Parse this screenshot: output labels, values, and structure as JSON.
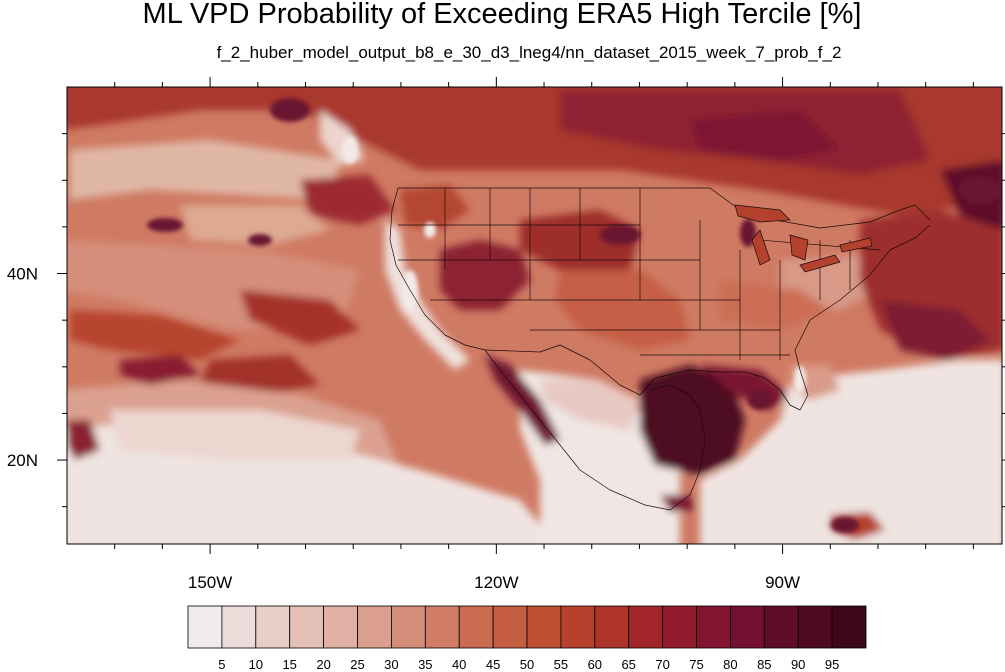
{
  "title": "ML VPD Probability of Exceeding ERA5 High Tercile [%]",
  "subtitle": "f_2_huber_model_output_b8_e_30_d3_lneg4/nn_dataset_2015_week_7_prob_f_2",
  "map": {
    "projection": "cylindrical equidistant",
    "lon_range": [
      -165,
      -67
    ],
    "lat_range": [
      11,
      60
    ],
    "x_ticks": [
      {
        "lon": -150,
        "label": "150W"
      },
      {
        "lon": -120,
        "label": "120W"
      },
      {
        "lon": -90,
        "label": "90W"
      }
    ],
    "y_ticks": [
      {
        "lat": 40,
        "label": "40N"
      },
      {
        "lat": 20,
        "label": "20N"
      }
    ],
    "boundaries": "coastlines, US states, Canada/Mexico borders"
  },
  "colorbar": {
    "labels": [
      "5",
      "10",
      "15",
      "20",
      "25",
      "30",
      "35",
      "40",
      "45",
      "50",
      "55",
      "60",
      "65",
      "70",
      "75",
      "80",
      "85",
      "90",
      "95"
    ],
    "colors": [
      "#f1ebeb",
      "#ecdcda",
      "#e8cdc8",
      "#e4bfb6",
      "#dfb0a3",
      "#da9f8f",
      "#d58e7a",
      "#d07c66",
      "#cb6b52",
      "#c55d42",
      "#bf5034",
      "#b7412c",
      "#ae3328",
      "#a22529",
      "#93192c",
      "#831432",
      "#731032",
      "#610c2b",
      "#4e0a22",
      "#3e0819"
    ]
  }
}
